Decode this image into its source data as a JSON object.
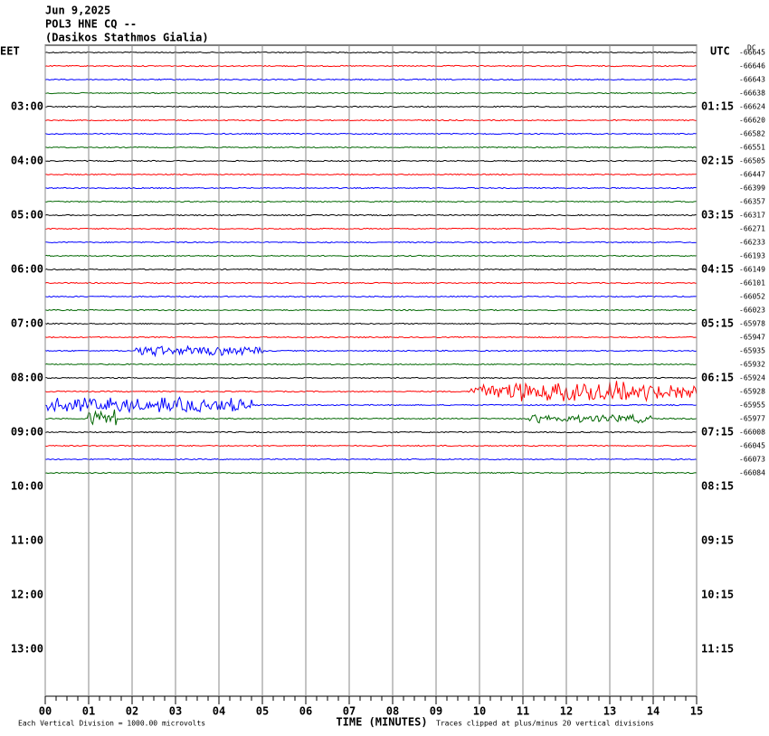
{
  "chart_data": {
    "type": "seismogram",
    "title_lines": [
      "Jun 9,2025",
      "POL3 HNE CQ --",
      "(Dasikos Stathmos Gialia)"
    ],
    "left_zone": "EET",
    "right_zone": "UTC",
    "offset_header": "DC",
    "left_labels": [
      "03:00",
      "04:00",
      "05:00",
      "06:00",
      "07:00",
      "08:00",
      "09:00",
      "10:00",
      "11:00",
      "12:00",
      "13:00"
    ],
    "right_labels": [
      "01:15",
      "02:15",
      "03:15",
      "04:15",
      "05:15",
      "06:15",
      "07:15",
      "08:15",
      "09:15",
      "10:15",
      "11:15"
    ],
    "trace_offsets": [
      -66645,
      -66646,
      -66643,
      -66638,
      -66624,
      -66620,
      -66582,
      -66551,
      -66505,
      -66447,
      -66399,
      -66357,
      -66317,
      -66271,
      -66233,
      -66193,
      -66149,
      -66101,
      -66052,
      -66023,
      -65978,
      -65947,
      -65935,
      -65932,
      -65924,
      -65928,
      -65955,
      -65977,
      -66008,
      -66045,
      -66073,
      -66084
    ],
    "trace_colors": [
      "#000000",
      "#ff0000",
      "#0000ff",
      "#006600"
    ],
    "x_label": "TIME (MINUTES)",
    "xlim": [
      0,
      15
    ],
    "xticks": [
      {
        "value": 0,
        "label": "00"
      },
      {
        "value": 1,
        "label": "01"
      },
      {
        "value": 2,
        "label": "02"
      },
      {
        "value": 3,
        "label": "03"
      },
      {
        "value": 4,
        "label": "04"
      },
      {
        "value": 5,
        "label": "05"
      },
      {
        "value": 6,
        "label": "06"
      },
      {
        "value": 7,
        "label": "07"
      },
      {
        "value": 8,
        "label": "08"
      },
      {
        "value": 9,
        "label": "09"
      },
      10,
      11,
      12,
      13,
      14,
      15
    ],
    "grid": true,
    "scale_note": "Each Vertical Division = 1000.00 microvolts",
    "clip_note": "Traces clipped at plus/minus 20 vertical divisions"
  }
}
